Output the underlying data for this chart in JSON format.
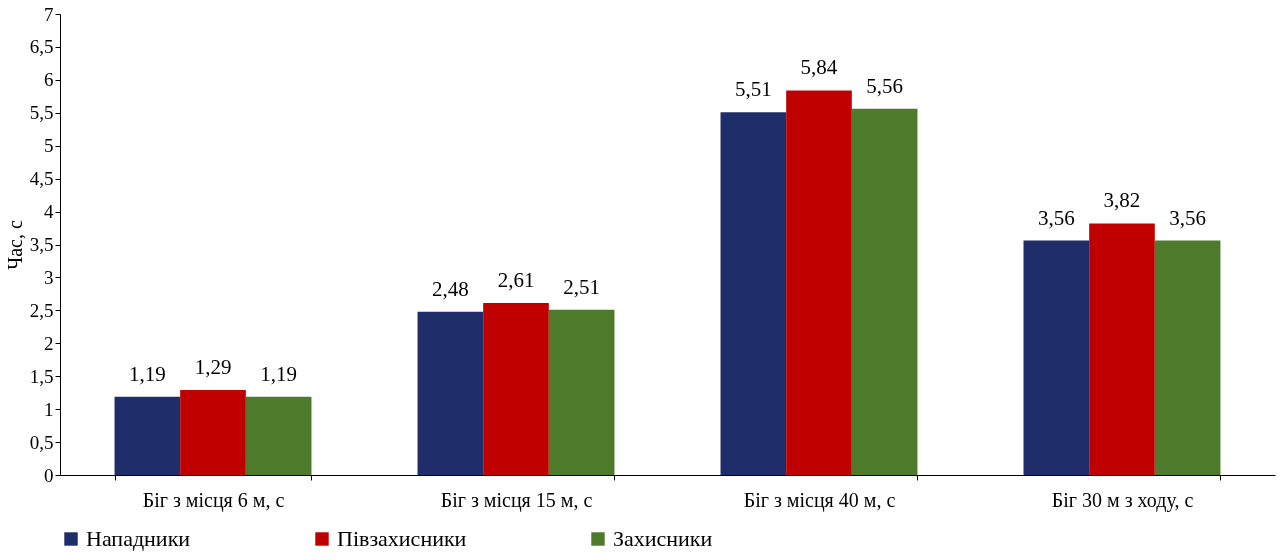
{
  "chart_data": {
    "type": "bar",
    "ylabel": "Час, с",
    "categories": [
      "Біг з місця 6 м, с",
      "Біг з місця 15 м, с",
      "Біг з місця 40 м, с",
      "Біг 30 м з ходу, с"
    ],
    "series": [
      {
        "name": "Нападники",
        "color": "#1f2d6b",
        "values": [
          1.19,
          2.48,
          5.51,
          3.56
        ],
        "value_labels": [
          "1,19",
          "2,48",
          "5,51",
          "3,56"
        ]
      },
      {
        "name": "Півзахисники",
        "color": "#c00000",
        "values": [
          1.29,
          2.61,
          5.84,
          3.82
        ],
        "value_labels": [
          "1,29",
          "2,61",
          "5,84",
          "3,82"
        ]
      },
      {
        "name": "Захисники",
        "color": "#4e7a2c",
        "values": [
          1.19,
          2.51,
          5.56,
          3.56
        ],
        "value_labels": [
          "1,19",
          "2,51",
          "5,56",
          "3,56"
        ]
      }
    ],
    "ylim": [
      0,
      7
    ],
    "yticks": [
      0,
      {
        "value": 0.5,
        "label": "0,5"
      },
      1,
      {
        "value": 1.5,
        "label": "1,5"
      },
      2,
      {
        "value": 2.5,
        "label": "2,5"
      },
      3,
      {
        "value": 3.5,
        "label": "3,5"
      },
      4,
      {
        "value": 4.5,
        "label": "4,5"
      },
      5,
      {
        "value": 5.5,
        "label": "5,5"
      },
      6,
      {
        "value": 6.5,
        "label": "6,5"
      },
      7
    ],
    "grid": false,
    "legend": "bottom"
  }
}
